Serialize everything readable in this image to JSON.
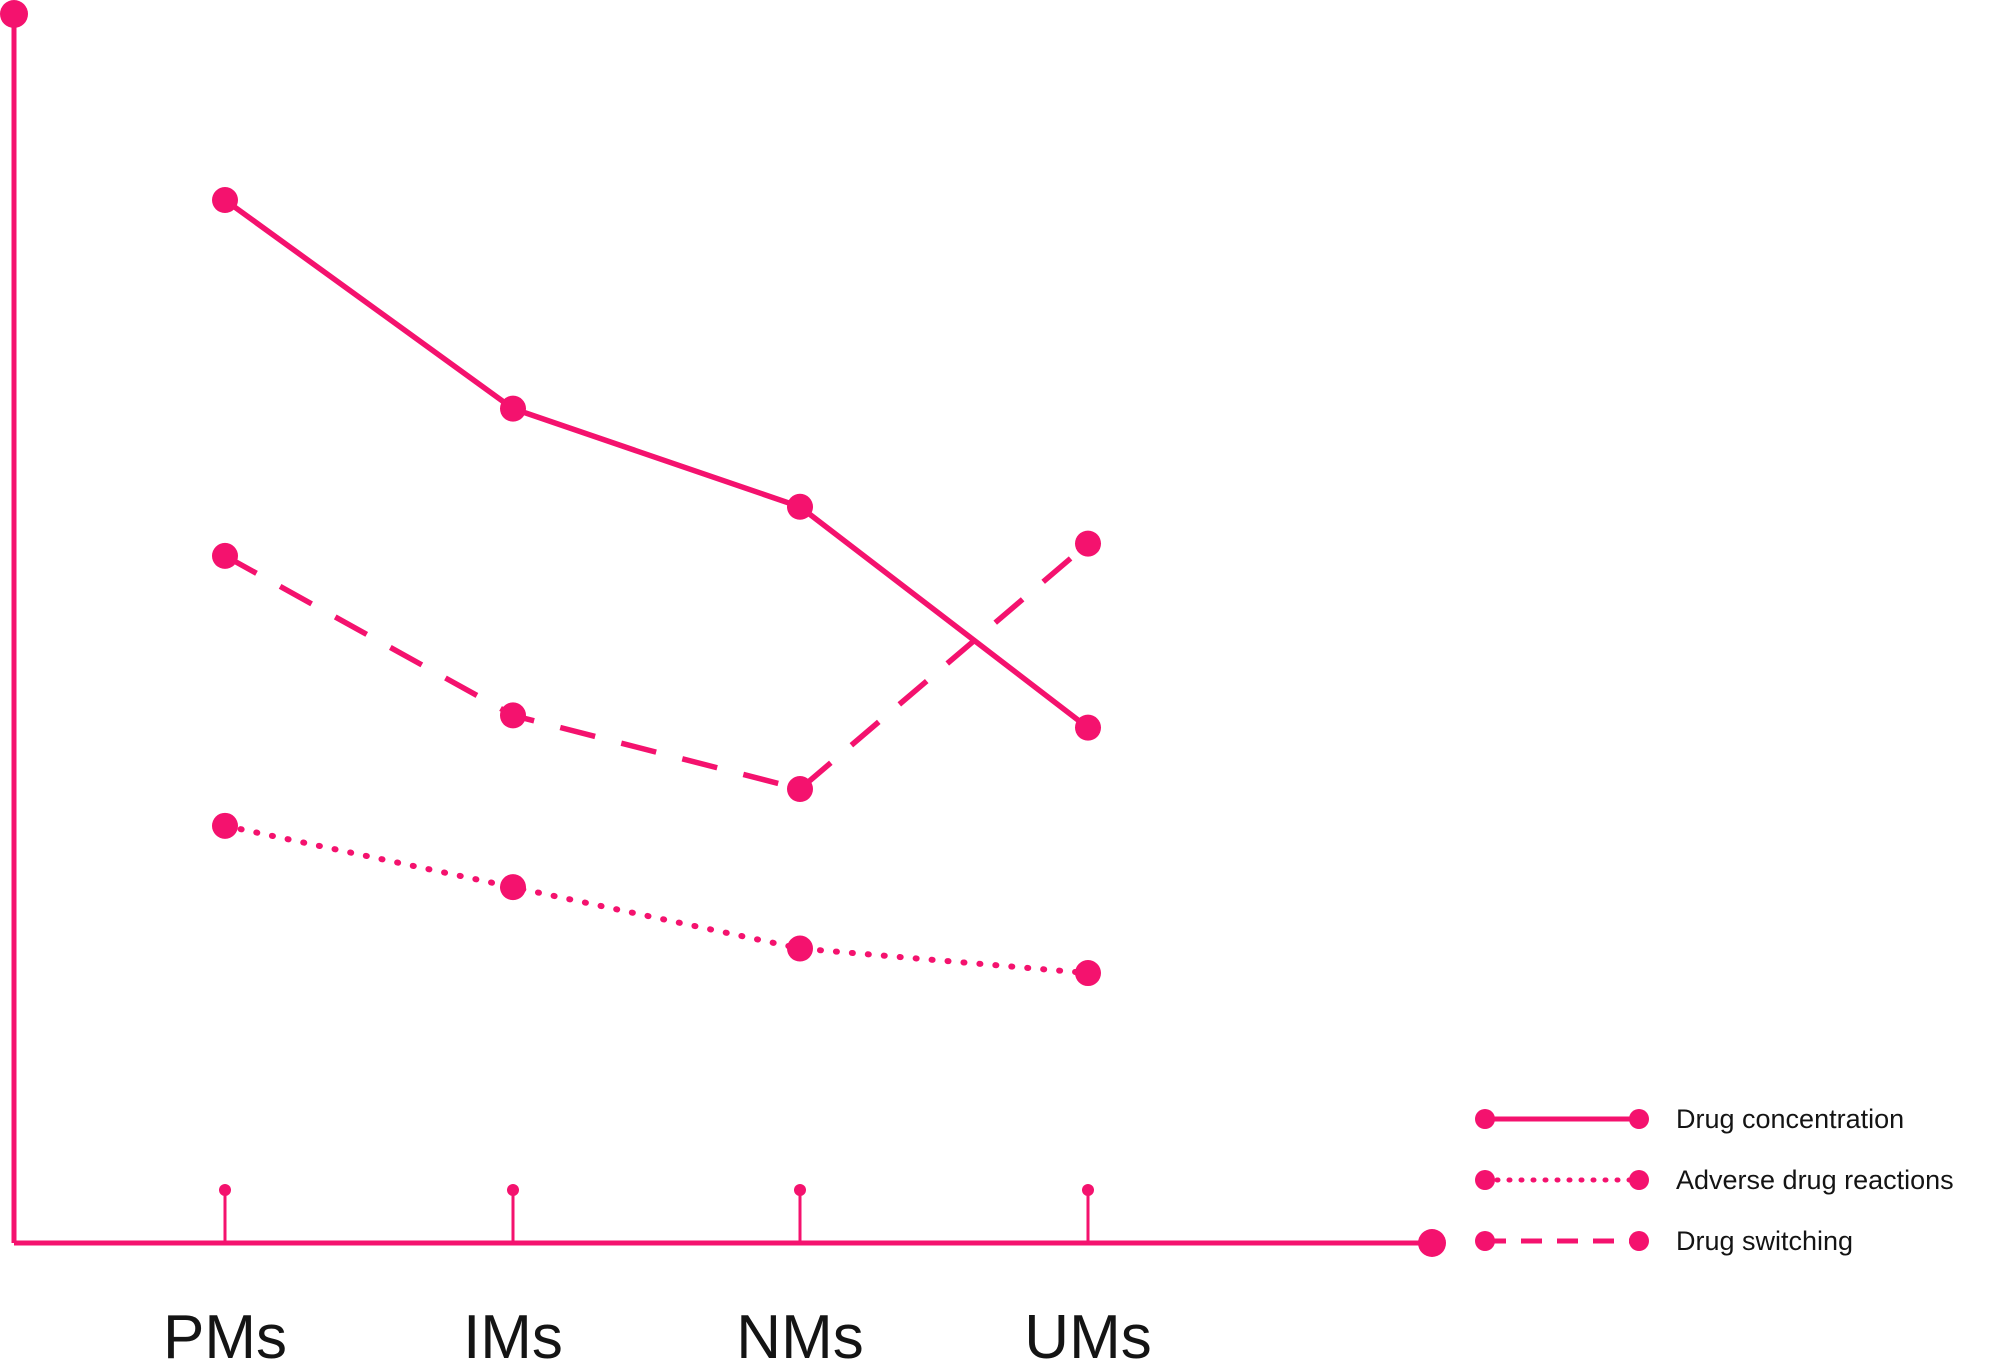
{
  "colors": {
    "accent": "#F4126E",
    "text": "#141414",
    "background": "#FFFFFF"
  },
  "chart_data": {
    "type": "line",
    "title": "",
    "xlabel": "",
    "ylabel": "",
    "categories": [
      "PMs",
      "IMs",
      "NMs",
      "UMs"
    ],
    "series": [
      {
        "name": "Drug concentration",
        "style": "solid",
        "values": [
          85,
          68,
          60,
          42
        ]
      },
      {
        "name": "Adverse drug reactions",
        "style": "dotted",
        "values": [
          34,
          29,
          24,
          22
        ]
      },
      {
        "name": "Drug switching",
        "style": "dashed",
        "values": [
          56,
          43,
          37,
          57
        ]
      }
    ],
    "ylim": [
      0,
      100
    ],
    "grid": false,
    "legend_position": "bottom-right"
  }
}
